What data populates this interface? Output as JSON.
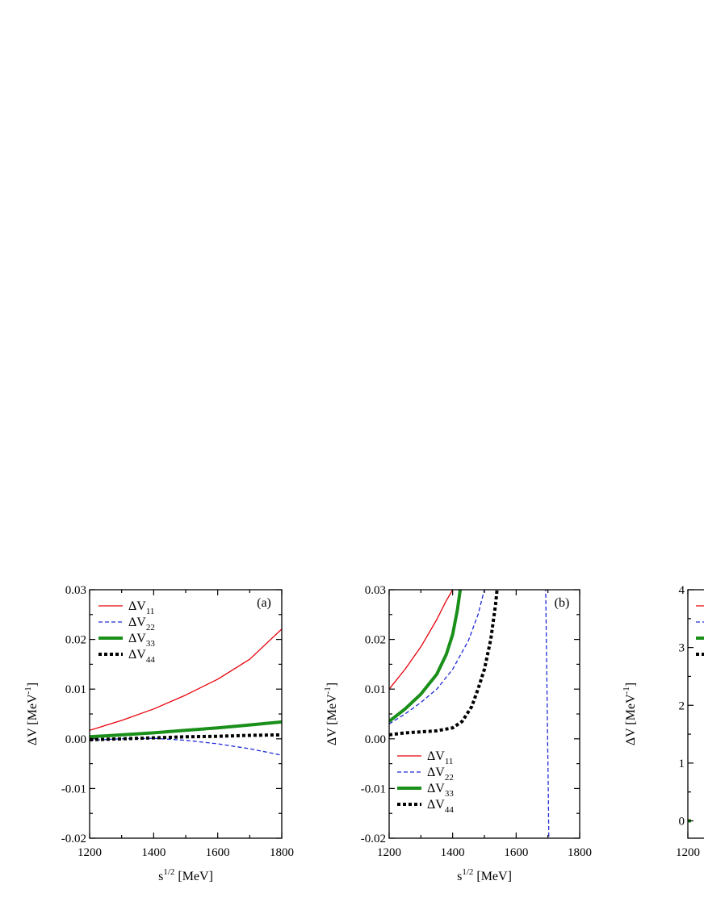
{
  "chart_data": [
    {
      "type": "line",
      "panel_label": "(a)",
      "xlabel": "s",
      "xlabel_sup": "1/2",
      "xlabel_unit": "[MeV]",
      "ylabel": "ΔV [MeV",
      "ylabel_sup": "-1",
      "ylabel_close": "]",
      "xlim": [
        1200,
        1800
      ],
      "ylim": [
        -0.02,
        0.03
      ],
      "xticks": [
        1200,
        1400,
        1600,
        1800
      ],
      "xtick_labels": [
        "1200",
        "1400",
        "1600",
        "1800"
      ],
      "yticks": [
        -0.02,
        -0.01,
        0.0,
        0.01,
        0.02,
        0.03
      ],
      "ytick_labels": [
        "-0.02",
        "-0.01",
        "0.00",
        "0.01",
        "0.02",
        "0.03"
      ],
      "legend_position": "top-left",
      "series": [
        {
          "name": "ΔV",
          "sub": "11",
          "color": "#e8000b",
          "style": "solid-thin",
          "x": [
            1200,
            1300,
            1400,
            1500,
            1600,
            1700,
            1800
          ],
          "y": [
            0.0017,
            0.0037,
            0.006,
            0.0088,
            0.012,
            0.016,
            0.0221
          ]
        },
        {
          "name": "ΔV",
          "sub": "22",
          "color": "#1f2ad6",
          "style": "dashed-thin",
          "x": [
            1200,
            1300,
            1400,
            1500,
            1600,
            1700,
            1800
          ],
          "y": [
            -0.0003,
            0.0,
            0.0001,
            -0.0003,
            -0.001,
            -0.002,
            -0.0033
          ]
        },
        {
          "name": "ΔV",
          "sub": "33",
          "color": "#1a8f1a",
          "style": "solid-thick",
          "x": [
            1200,
            1300,
            1400,
            1500,
            1600,
            1700,
            1800
          ],
          "y": [
            0.0004,
            0.0008,
            0.0012,
            0.0017,
            0.0022,
            0.0028,
            0.0034
          ]
        },
        {
          "name": "ΔV",
          "sub": "44",
          "color": "#000000",
          "style": "dotted-thick",
          "x": [
            1200,
            1300,
            1400,
            1500,
            1600,
            1700,
            1800
          ],
          "y": [
            -0.0002,
            0.0,
            0.0002,
            0.0004,
            0.0005,
            0.0007,
            0.0008
          ]
        }
      ]
    },
    {
      "type": "line",
      "panel_label": "(b)",
      "xlabel": "s",
      "xlabel_sup": "1/2",
      "xlabel_unit": "[MeV]",
      "ylabel": "ΔV [MeV",
      "ylabel_sup": "-1",
      "ylabel_close": "]",
      "xlim": [
        1200,
        1800
      ],
      "ylim": [
        -0.02,
        0.03
      ],
      "xticks": [
        1200,
        1400,
        1600,
        1800
      ],
      "xtick_labels": [
        "1200",
        "1400",
        "1600",
        "1800"
      ],
      "yticks": [
        -0.02,
        -0.01,
        0.0,
        0.01,
        0.02,
        0.03
      ],
      "ytick_labels": [
        "-0.02",
        "-0.01",
        "0.00",
        "0.01",
        "0.02",
        "0.03"
      ],
      "legend_position": "bottom-left",
      "series": [
        {
          "name": "ΔV",
          "sub": "11",
          "color": "#e8000b",
          "style": "solid-thin",
          "x": [
            1200,
            1250,
            1300,
            1350,
            1380,
            1400,
            1405
          ],
          "y": [
            0.01,
            0.014,
            0.0185,
            0.024,
            0.0278,
            0.03,
            0.0304
          ]
        },
        {
          "name": "ΔV",
          "sub": "22",
          "color": "#1f2ad6",
          "style": "dashed-thin",
          "x": [
            1200,
            1250,
            1300,
            1350,
            1400,
            1450,
            1480,
            1500,
            1505
          ],
          "y": [
            0.003,
            0.005,
            0.0073,
            0.01,
            0.014,
            0.0198,
            0.025,
            0.03,
            0.0305
          ]
        },
        {
          "name": "ΔV",
          "sub": "22",
          "color": "#1f2ad6",
          "style": "dashed-thin",
          "x": [
            1693,
            1695,
            1697,
            1699,
            1701,
            1703
          ],
          "y": [
            0.0305,
            0.02,
            0.01,
            0.0,
            -0.01,
            -0.0205
          ]
        },
        {
          "name": "ΔV",
          "sub": "33",
          "color": "#1a8f1a",
          "style": "solid-thick",
          "x": [
            1200,
            1250,
            1300,
            1350,
            1380,
            1400,
            1415,
            1425
          ],
          "y": [
            0.0035,
            0.006,
            0.009,
            0.013,
            0.017,
            0.021,
            0.026,
            0.0305
          ]
        },
        {
          "name": "ΔV",
          "sub": "44",
          "color": "#000000",
          "style": "dotted-thick",
          "x": [
            1200,
            1250,
            1300,
            1350,
            1400,
            1430,
            1460,
            1480,
            1500,
            1520,
            1535,
            1540
          ],
          "y": [
            0.0008,
            0.0012,
            0.0014,
            0.0016,
            0.0022,
            0.0035,
            0.0065,
            0.01,
            0.014,
            0.02,
            0.027,
            0.03
          ]
        }
      ]
    },
    {
      "type": "line",
      "panel_label": "",
      "xlabel": "",
      "ylabel": "ΔV [MeV",
      "ylabel_sup": "-1",
      "ylabel_close": "]",
      "xlim": [
        1200,
        1800
      ],
      "ylim": [
        -0.3,
        4
      ],
      "xticks": [
        1200
      ],
      "xtick_labels": [
        "1200"
      ],
      "yticks": [
        0,
        1,
        2,
        3,
        4
      ],
      "ytick_labels": [
        "0",
        "1",
        "2",
        "3",
        "4"
      ],
      "legend_position": "top-left",
      "series": [
        {
          "name": "",
          "color": "#e8000b",
          "style": "solid-thin",
          "x": [
            1200,
            1210
          ],
          "y": [
            0.02,
            0.02
          ]
        },
        {
          "name": "",
          "color": "#1a8f1a",
          "style": "solid-thick",
          "x": [
            1200,
            1210
          ],
          "y": [
            0.0,
            0.0
          ]
        }
      ],
      "legend_swatches": [
        {
          "color": "#e8000b",
          "style": "solid-thin"
        },
        {
          "color": "#1f2ad6",
          "style": "dashed-thin"
        },
        {
          "color": "#1a8f1a",
          "style": "solid-thick"
        },
        {
          "color": "#000000",
          "style": "dotted-thick"
        }
      ]
    }
  ]
}
